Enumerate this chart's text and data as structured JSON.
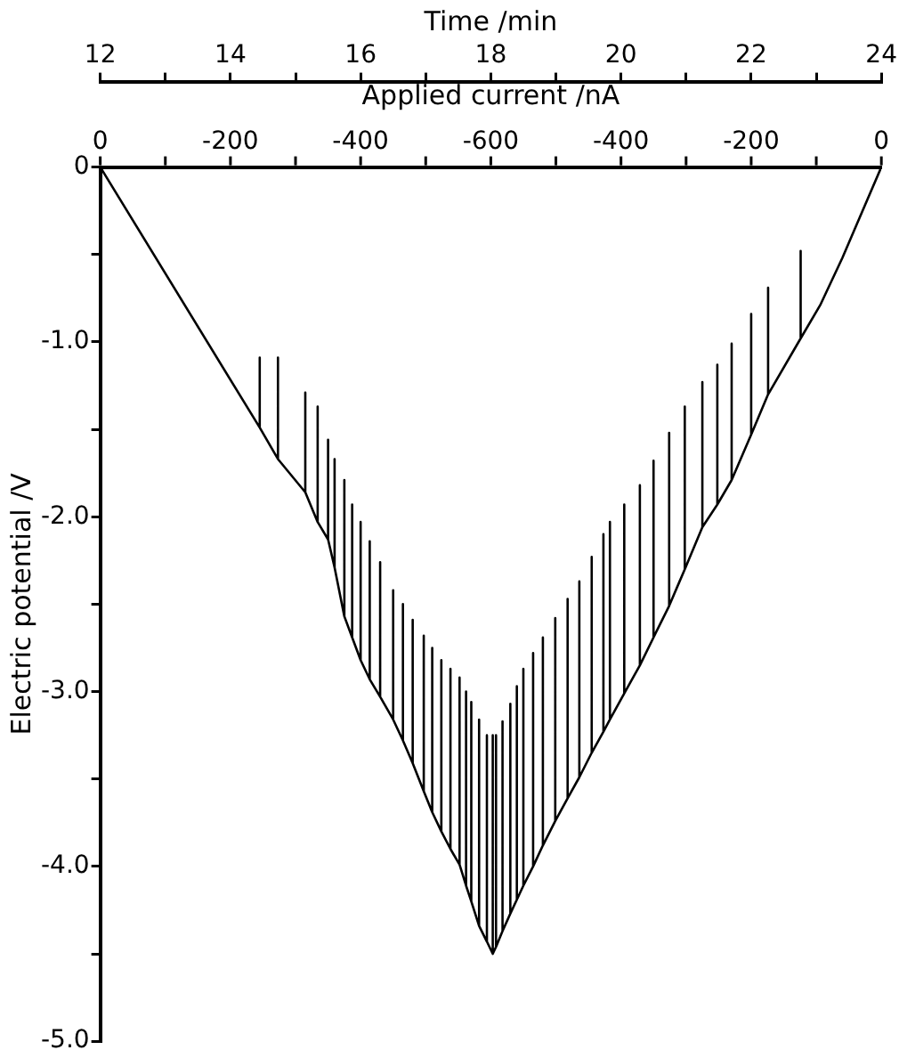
{
  "chart_data": {
    "type": "line",
    "xlabel": "Time /min",
    "x2label": "Applied current /nA",
    "ylabel": "Electric potential /V",
    "xlim": [
      12,
      24
    ],
    "xticks": [
      12,
      {
        "value": 13,
        "label": null
      },
      14,
      {
        "value": 15,
        "label": null
      },
      16,
      {
        "value": 17,
        "label": null
      },
      18,
      {
        "value": 19,
        "label": null
      },
      20,
      {
        "value": 21,
        "label": null
      },
      22,
      {
        "value": 23,
        "label": null
      },
      24
    ],
    "annotations": [
      "0",
      "-200",
      "-400",
      "-600",
      "-400",
      "-200",
      "0"
    ],
    "ylim": [
      -5,
      0
    ],
    "yticks": [
      0,
      {
        "value": -0.5,
        "label": null
      },
      {
        "value": -1,
        "label": "-1.0"
      },
      {
        "value": -1.5,
        "label": null
      },
      {
        "value": -2,
        "label": "-2.0"
      },
      {
        "value": -2.5,
        "label": null
      },
      {
        "value": -3,
        "label": "-3.0"
      },
      {
        "value": -3.5,
        "label": null
      },
      {
        "value": -4,
        "label": "-4.0"
      },
      {
        "value": -4.5,
        "label": null
      },
      {
        "value": -5,
        "label": "-5.0"
      }
    ],
    "grid": false,
    "legend": false,
    "marker": "none",
    "line_style": "solid",
    "x": [
      12,
      14.45,
      14.45,
      14.45,
      14.73,
      14.73,
      14.73,
      15.15,
      15.15,
      15.15,
      15.34,
      15.34,
      15.34,
      15.5,
      15.5,
      15.5,
      15.6,
      15.6,
      15.6,
      15.75,
      15.75,
      15.75,
      15.87,
      15.87,
      15.87,
      16.0,
      16.0,
      16.0,
      16.14,
      16.14,
      16.14,
      16.3,
      16.3,
      16.3,
      16.5,
      16.5,
      16.5,
      16.65,
      16.65,
      16.65,
      16.8,
      16.8,
      16.8,
      16.97,
      16.97,
      16.97,
      17.1,
      17.1,
      17.1,
      17.24,
      17.24,
      17.24,
      17.38,
      17.38,
      17.38,
      17.52,
      17.52,
      17.52,
      17.62,
      17.62,
      17.62,
      17.7,
      17.7,
      17.7,
      17.82,
      17.82,
      17.82,
      17.94,
      17.94,
      17.94,
      18.03,
      18.03,
      18.03,
      18.08,
      18.08,
      18.08,
      18.18,
      18.18,
      18.18,
      18.3,
      18.3,
      18.3,
      18.4,
      18.4,
      18.4,
      18.5,
      18.5,
      18.5,
      18.65,
      18.65,
      18.65,
      18.8,
      18.8,
      18.8,
      18.99,
      18.99,
      18.99,
      19.18,
      19.18,
      19.18,
      19.36,
      19.36,
      19.36,
      19.55,
      19.55,
      19.55,
      19.73,
      19.73,
      19.73,
      19.83,
      19.83,
      19.83,
      20.05,
      20.05,
      20.05,
      20.29,
      20.29,
      20.29,
      20.5,
      20.5,
      20.5,
      20.74,
      20.74,
      20.74,
      20.98,
      20.98,
      20.98,
      21.25,
      21.25,
      21.25,
      21.48,
      21.48,
      21.48,
      21.7,
      21.7,
      21.7,
      22.0,
      22.0,
      22.0,
      22.26,
      22.26,
      22.26,
      22.76,
      22.76,
      22.76,
      23.06,
      23.4,
      24
    ],
    "series": [
      {
        "color": "#000000",
        "values": [
          0,
          -1.49,
          -1.09,
          -1.49,
          -1.67,
          -1.09,
          -1.67,
          -1.86,
          -1.29,
          -1.86,
          -2.03,
          -1.37,
          -2.03,
          -2.13,
          -1.56,
          -2.13,
          -2.29,
          -1.67,
          -2.29,
          -2.57,
          -1.79,
          -2.57,
          -2.69,
          -1.93,
          -2.69,
          -2.82,
          -2.03,
          -2.82,
          -2.93,
          -2.14,
          -2.93,
          -3.03,
          -2.26,
          -3.03,
          -3.16,
          -2.42,
          -3.16,
          -3.28,
          -2.5,
          -3.28,
          -3.41,
          -2.59,
          -3.41,
          -3.57,
          -2.68,
          -3.57,
          -3.69,
          -2.75,
          -3.69,
          -3.8,
          -2.82,
          -3.8,
          -3.9,
          -2.87,
          -3.9,
          -3.99,
          -2.92,
          -3.99,
          -4.11,
          -3.0,
          -4.11,
          -4.2,
          -3.06,
          -4.2,
          -4.34,
          -3.16,
          -4.34,
          -4.43,
          -3.25,
          -4.43,
          -4.5,
          -3.25,
          -4.5,
          -4.46,
          -3.25,
          -4.46,
          -4.37,
          -3.17,
          -4.37,
          -4.27,
          -3.07,
          -4.27,
          -4.19,
          -2.97,
          -4.19,
          -4.11,
          -2.87,
          -4.11,
          -4.0,
          -2.78,
          -4.0,
          -3.88,
          -2.69,
          -3.88,
          -3.74,
          -2.58,
          -3.74,
          -3.61,
          -2.47,
          -3.61,
          -3.49,
          -2.37,
          -3.49,
          -3.35,
          -2.23,
          -3.35,
          -3.23,
          -2.1,
          -3.23,
          -3.16,
          -2.03,
          -3.16,
          -3.01,
          -1.93,
          -3.01,
          -2.85,
          -1.82,
          -2.85,
          -2.69,
          -1.68,
          -2.69,
          -2.51,
          -1.52,
          -2.51,
          -2.3,
          -1.37,
          -2.3,
          -2.06,
          -1.23,
          -2.06,
          -1.93,
          -1.13,
          -1.93,
          -1.79,
          -1.01,
          -1.79,
          -1.53,
          -0.84,
          -1.53,
          -1.3,
          -0.69,
          -1.3,
          -0.98,
          -0.48,
          -0.98,
          -0.79,
          -0.52,
          0
        ]
      }
    ]
  }
}
